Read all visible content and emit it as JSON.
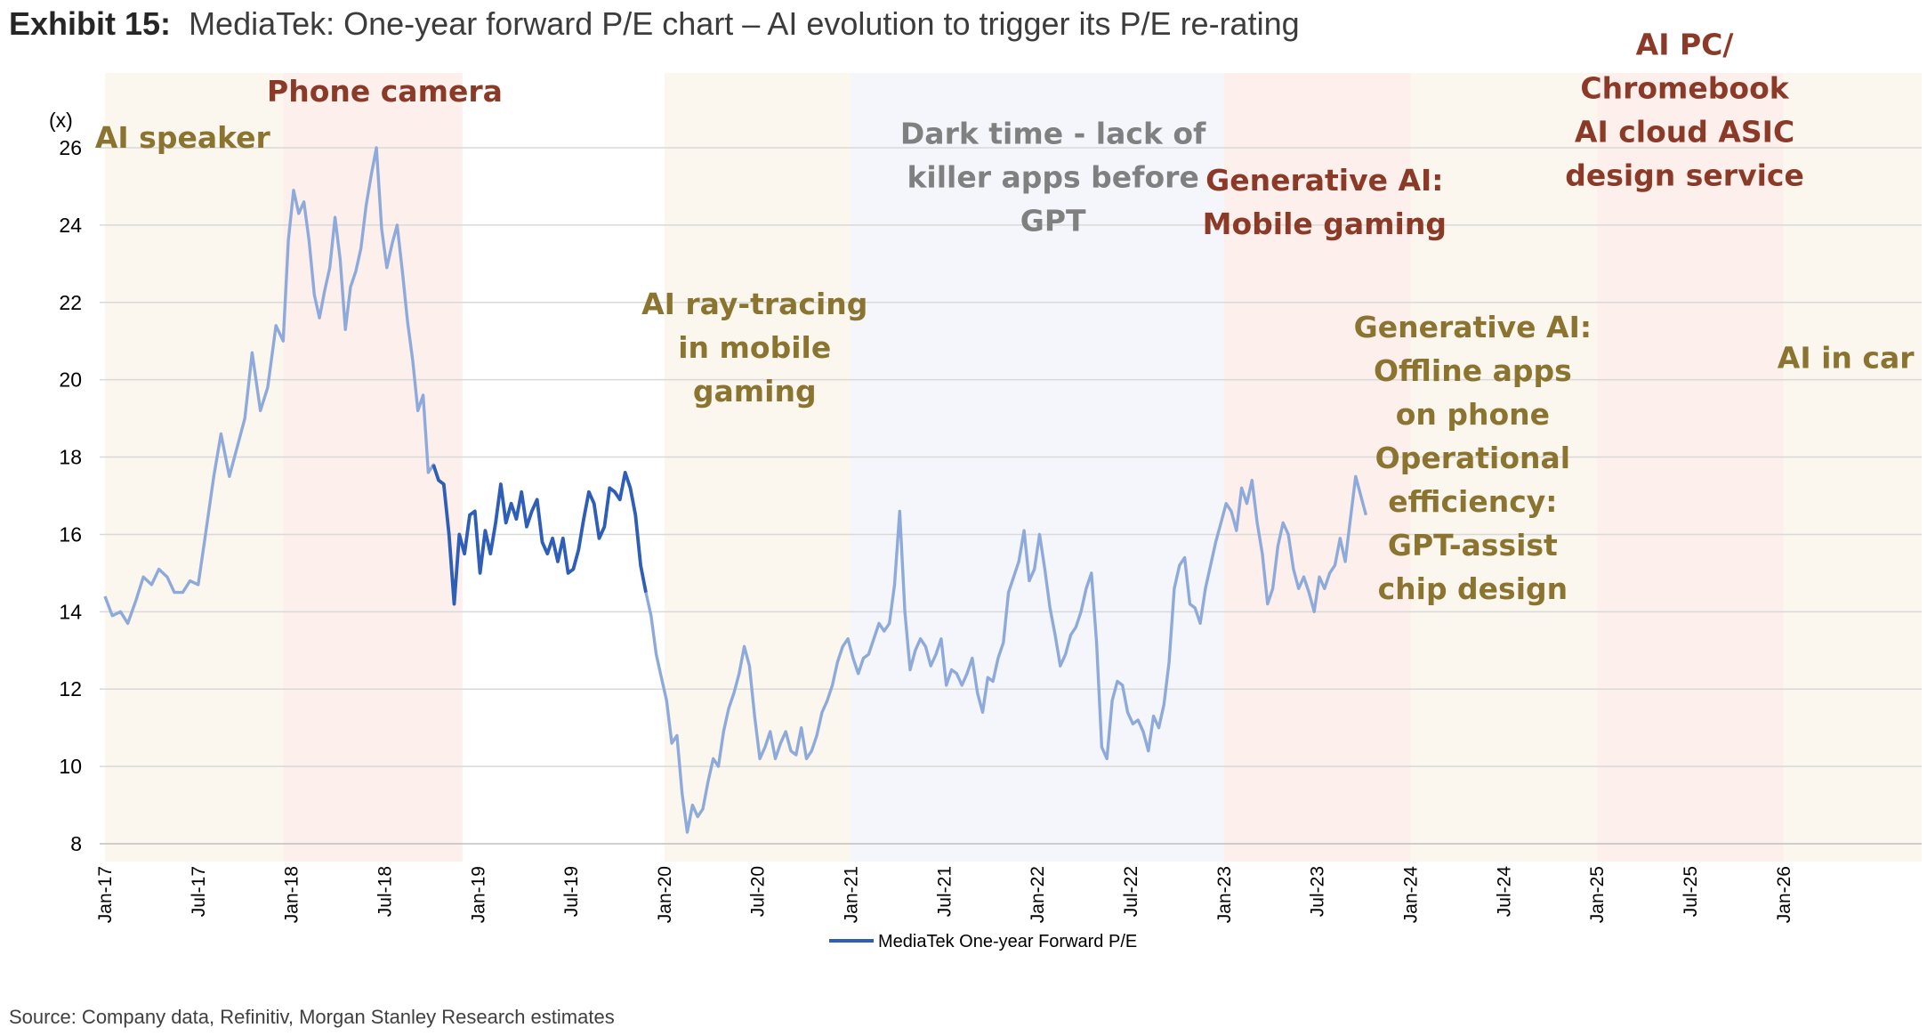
{
  "title": {
    "label": "Exhibit 15:",
    "text": "MediaTek: One-year forward P/E chart – AI evolution to trigger its P/E re-rating"
  },
  "source": "Source: Company data, Refinitiv, Morgan Stanley Research estimates",
  "chart_data": {
    "type": "line",
    "y_unit": "(x)",
    "ylim": [
      8,
      26
    ],
    "yticks": [
      "8",
      "10",
      "12",
      "14",
      "16",
      "18",
      "20",
      "22",
      "24",
      "26"
    ],
    "xlim": [
      "2017-01",
      "2026-10"
    ],
    "xticks": [
      "Jan-17",
      "Jul-17",
      "Jan-18",
      "Jul-18",
      "Jan-19",
      "Jul-19",
      "Jan-20",
      "Jul-20",
      "Jan-21",
      "Jul-21",
      "Jan-22",
      "Jul-22",
      "Jan-23",
      "Jul-23",
      "Jan-24",
      "Jul-24",
      "Jan-25",
      "Jul-25",
      "Jan-26"
    ],
    "grid": true,
    "legend": "bottom",
    "colors": {
      "line_light": "#8eaadb",
      "line_dark": "#2f5eb8",
      "olive": "#8a7430",
      "brown": "#8b3a28",
      "gray": "#808080",
      "band_beige": "#fbf6ee",
      "band_pink": "#fcefec",
      "band_blue": "#f4f6fb"
    },
    "series": [
      {
        "name": "MediaTek One-year Forward P/E",
        "highlight": [
          "2018-10",
          "2019-12"
        ],
        "points": [
          [
            "2017-01-01",
            14.4
          ],
          [
            "2017-01-15",
            13.9
          ],
          [
            "2017-02-01",
            14.0
          ],
          [
            "2017-02-15",
            13.7
          ],
          [
            "2017-03-01",
            14.3
          ],
          [
            "2017-03-15",
            14.9
          ],
          [
            "2017-04-01",
            14.7
          ],
          [
            "2017-04-15",
            15.1
          ],
          [
            "2017-05-01",
            14.9
          ],
          [
            "2017-05-15",
            14.5
          ],
          [
            "2017-06-01",
            14.5
          ],
          [
            "2017-06-15",
            14.8
          ],
          [
            "2017-07-01",
            14.7
          ],
          [
            "2017-07-15",
            16.0
          ],
          [
            "2017-08-01",
            17.5
          ],
          [
            "2017-08-15",
            18.6
          ],
          [
            "2017-09-01",
            17.5
          ],
          [
            "2017-09-15",
            18.2
          ],
          [
            "2017-10-01",
            19.0
          ],
          [
            "2017-10-15",
            20.7
          ],
          [
            "2017-11-01",
            19.2
          ],
          [
            "2017-11-15",
            19.8
          ],
          [
            "2017-12-01",
            21.4
          ],
          [
            "2017-12-15",
            21.0
          ],
          [
            "2017-12-25",
            23.6
          ],
          [
            "2018-01-05",
            24.9
          ],
          [
            "2018-01-15",
            24.3
          ],
          [
            "2018-01-25",
            24.6
          ],
          [
            "2018-02-05",
            23.6
          ],
          [
            "2018-02-15",
            22.2
          ],
          [
            "2018-02-25",
            21.6
          ],
          [
            "2018-03-05",
            22.3
          ],
          [
            "2018-03-15",
            22.9
          ],
          [
            "2018-03-25",
            24.2
          ],
          [
            "2018-04-05",
            23.1
          ],
          [
            "2018-04-15",
            21.3
          ],
          [
            "2018-04-25",
            22.4
          ],
          [
            "2018-05-05",
            22.8
          ],
          [
            "2018-05-15",
            23.4
          ],
          [
            "2018-05-25",
            24.5
          ],
          [
            "2018-06-05",
            25.3
          ],
          [
            "2018-06-15",
            26.0
          ],
          [
            "2018-06-25",
            23.9
          ],
          [
            "2018-07-05",
            22.9
          ],
          [
            "2018-07-15",
            23.5
          ],
          [
            "2018-07-25",
            24.0
          ],
          [
            "2018-08-05",
            22.8
          ],
          [
            "2018-08-15",
            21.5
          ],
          [
            "2018-08-25",
            20.5
          ],
          [
            "2018-09-05",
            19.2
          ],
          [
            "2018-09-15",
            19.6
          ],
          [
            "2018-09-25",
            17.6
          ],
          [
            "2018-10-05",
            17.8
          ],
          [
            "2018-10-15",
            17.4
          ],
          [
            "2018-10-25",
            17.3
          ],
          [
            "2018-11-05",
            16.0
          ],
          [
            "2018-11-15",
            14.2
          ],
          [
            "2018-11-25",
            16.0
          ],
          [
            "2018-12-05",
            15.5
          ],
          [
            "2018-12-15",
            16.5
          ],
          [
            "2018-12-25",
            16.6
          ],
          [
            "2019-01-05",
            15.0
          ],
          [
            "2019-01-15",
            16.1
          ],
          [
            "2019-01-25",
            15.5
          ],
          [
            "2019-02-05",
            16.3
          ],
          [
            "2019-02-15",
            17.3
          ],
          [
            "2019-02-25",
            16.3
          ],
          [
            "2019-03-05",
            16.8
          ],
          [
            "2019-03-15",
            16.4
          ],
          [
            "2019-03-25",
            17.1
          ],
          [
            "2019-04-05",
            16.2
          ],
          [
            "2019-04-15",
            16.6
          ],
          [
            "2019-04-25",
            16.9
          ],
          [
            "2019-05-05",
            15.8
          ],
          [
            "2019-05-15",
            15.5
          ],
          [
            "2019-05-25",
            15.9
          ],
          [
            "2019-06-05",
            15.3
          ],
          [
            "2019-06-15",
            15.9
          ],
          [
            "2019-06-25",
            15.0
          ],
          [
            "2019-07-05",
            15.1
          ],
          [
            "2019-07-15",
            15.6
          ],
          [
            "2019-07-25",
            16.4
          ],
          [
            "2019-08-05",
            17.1
          ],
          [
            "2019-08-15",
            16.8
          ],
          [
            "2019-08-25",
            15.9
          ],
          [
            "2019-09-05",
            16.2
          ],
          [
            "2019-09-15",
            17.2
          ],
          [
            "2019-09-25",
            17.1
          ],
          [
            "2019-10-05",
            16.9
          ],
          [
            "2019-10-15",
            17.6
          ],
          [
            "2019-10-25",
            17.2
          ],
          [
            "2019-11-05",
            16.5
          ],
          [
            "2019-11-15",
            15.2
          ],
          [
            "2019-11-25",
            14.5
          ],
          [
            "2019-12-05",
            13.9
          ],
          [
            "2019-12-15",
            12.9
          ],
          [
            "2019-12-25",
            12.3
          ],
          [
            "2020-01-05",
            11.7
          ],
          [
            "2020-01-15",
            10.6
          ],
          [
            "2020-01-25",
            10.8
          ],
          [
            "2020-02-05",
            9.3
          ],
          [
            "2020-02-15",
            8.3
          ],
          [
            "2020-02-25",
            9.0
          ],
          [
            "2020-03-05",
            8.7
          ],
          [
            "2020-03-15",
            8.9
          ],
          [
            "2020-03-25",
            9.6
          ],
          [
            "2020-04-05",
            10.2
          ],
          [
            "2020-04-15",
            10.0
          ],
          [
            "2020-04-25",
            10.9
          ],
          [
            "2020-05-05",
            11.5
          ],
          [
            "2020-05-15",
            11.9
          ],
          [
            "2020-05-25",
            12.4
          ],
          [
            "2020-06-05",
            13.1
          ],
          [
            "2020-06-15",
            12.6
          ],
          [
            "2020-06-25",
            11.3
          ],
          [
            "2020-07-05",
            10.2
          ],
          [
            "2020-07-15",
            10.5
          ],
          [
            "2020-07-25",
            10.9
          ],
          [
            "2020-08-05",
            10.2
          ],
          [
            "2020-08-15",
            10.6
          ],
          [
            "2020-08-25",
            10.9
          ],
          [
            "2020-09-05",
            10.4
          ],
          [
            "2020-09-15",
            10.3
          ],
          [
            "2020-09-25",
            11.0
          ],
          [
            "2020-10-05",
            10.2
          ],
          [
            "2020-10-15",
            10.4
          ],
          [
            "2020-10-25",
            10.8
          ],
          [
            "2020-11-05",
            11.4
          ],
          [
            "2020-11-15",
            11.7
          ],
          [
            "2020-11-25",
            12.1
          ],
          [
            "2020-12-05",
            12.7
          ],
          [
            "2020-12-15",
            13.1
          ],
          [
            "2020-12-25",
            13.3
          ],
          [
            "2021-01-05",
            12.8
          ],
          [
            "2021-01-15",
            12.4
          ],
          [
            "2021-01-25",
            12.8
          ],
          [
            "2021-02-05",
            12.9
          ],
          [
            "2021-02-15",
            13.3
          ],
          [
            "2021-02-25",
            13.7
          ],
          [
            "2021-03-05",
            13.5
          ],
          [
            "2021-03-15",
            13.7
          ],
          [
            "2021-03-25",
            14.7
          ],
          [
            "2021-04-05",
            16.6
          ],
          [
            "2021-04-15",
            14.0
          ],
          [
            "2021-04-25",
            12.5
          ],
          [
            "2021-05-05",
            13.0
          ],
          [
            "2021-05-15",
            13.3
          ],
          [
            "2021-05-25",
            13.1
          ],
          [
            "2021-06-05",
            12.6
          ],
          [
            "2021-06-15",
            12.9
          ],
          [
            "2021-06-25",
            13.3
          ],
          [
            "2021-07-05",
            12.1
          ],
          [
            "2021-07-15",
            12.5
          ],
          [
            "2021-07-25",
            12.4
          ],
          [
            "2021-08-05",
            12.1
          ],
          [
            "2021-08-15",
            12.4
          ],
          [
            "2021-08-25",
            12.8
          ],
          [
            "2021-09-05",
            11.9
          ],
          [
            "2021-09-15",
            11.4
          ],
          [
            "2021-09-25",
            12.3
          ],
          [
            "2021-10-05",
            12.2
          ],
          [
            "2021-10-15",
            12.8
          ],
          [
            "2021-10-25",
            13.2
          ],
          [
            "2021-11-05",
            14.5
          ],
          [
            "2021-11-15",
            14.9
          ],
          [
            "2021-11-25",
            15.3
          ],
          [
            "2021-12-05",
            16.1
          ],
          [
            "2021-12-15",
            14.8
          ],
          [
            "2021-12-25",
            15.1
          ],
          [
            "2022-01-05",
            16.0
          ],
          [
            "2022-01-15",
            15.1
          ],
          [
            "2022-01-25",
            14.1
          ],
          [
            "2022-02-05",
            13.4
          ],
          [
            "2022-02-15",
            12.6
          ],
          [
            "2022-02-25",
            12.9
          ],
          [
            "2022-03-05",
            13.4
          ],
          [
            "2022-03-15",
            13.6
          ],
          [
            "2022-03-25",
            14.0
          ],
          [
            "2022-04-05",
            14.6
          ],
          [
            "2022-04-15",
            15.0
          ],
          [
            "2022-04-25",
            13.2
          ],
          [
            "2022-05-05",
            10.5
          ],
          [
            "2022-05-15",
            10.2
          ],
          [
            "2022-05-25",
            11.7
          ],
          [
            "2022-06-05",
            12.2
          ],
          [
            "2022-06-15",
            12.1
          ],
          [
            "2022-06-25",
            11.4
          ],
          [
            "2022-07-05",
            11.1
          ],
          [
            "2022-07-15",
            11.2
          ],
          [
            "2022-07-25",
            10.9
          ],
          [
            "2022-08-05",
            10.4
          ],
          [
            "2022-08-15",
            11.3
          ],
          [
            "2022-08-25",
            11.0
          ],
          [
            "2022-09-05",
            11.6
          ],
          [
            "2022-09-15",
            12.7
          ],
          [
            "2022-09-25",
            14.6
          ],
          [
            "2022-10-05",
            15.2
          ],
          [
            "2022-10-15",
            15.4
          ],
          [
            "2022-10-25",
            14.2
          ],
          [
            "2022-11-05",
            14.1
          ],
          [
            "2022-11-15",
            13.7
          ],
          [
            "2022-11-25",
            14.6
          ],
          [
            "2022-12-05",
            15.2
          ],
          [
            "2022-12-15",
            15.8
          ],
          [
            "2022-12-25",
            16.3
          ],
          [
            "2023-01-05",
            16.8
          ],
          [
            "2023-01-15",
            16.6
          ],
          [
            "2023-01-25",
            16.1
          ],
          [
            "2023-02-05",
            17.2
          ],
          [
            "2023-02-15",
            16.8
          ],
          [
            "2023-02-25",
            17.4
          ],
          [
            "2023-03-05",
            16.3
          ],
          [
            "2023-03-15",
            15.5
          ],
          [
            "2023-03-25",
            14.2
          ],
          [
            "2023-04-05",
            14.6
          ],
          [
            "2023-04-15",
            15.7
          ],
          [
            "2023-04-25",
            16.3
          ],
          [
            "2023-05-05",
            16.0
          ],
          [
            "2023-05-15",
            15.1
          ],
          [
            "2023-05-25",
            14.6
          ],
          [
            "2023-06-05",
            14.9
          ],
          [
            "2023-06-15",
            14.5
          ],
          [
            "2023-06-25",
            14.0
          ],
          [
            "2023-07-05",
            14.9
          ],
          [
            "2023-07-15",
            14.6
          ],
          [
            "2023-07-25",
            15.0
          ],
          [
            "2023-08-05",
            15.2
          ],
          [
            "2023-08-15",
            15.9
          ],
          [
            "2023-08-25",
            15.3
          ],
          [
            "2023-09-05",
            16.4
          ],
          [
            "2023-09-15",
            17.5
          ],
          [
            "2023-09-25",
            17.0
          ],
          [
            "2023-10-05",
            16.5
          ]
        ]
      }
    ],
    "bands": [
      {
        "from": "2017-01",
        "to": "2017-12-15",
        "tone": "beige",
        "label": [
          "AI speaker"
        ],
        "label_color": "olive",
        "label_x": "2017-06",
        "label_y": 26.0
      },
      {
        "from": "2017-12-15",
        "to": "2018-12",
        "tone": "pink",
        "label": [
          "Phone camera"
        ],
        "label_color": "brown",
        "label_x": "2018-07",
        "label_y": 27.2
      },
      {
        "from": "2020-01",
        "to": "2021-01",
        "tone": "beige",
        "label": [
          "AI ray-tracing",
          "in mobile",
          "gaming"
        ],
        "label_color": "olive",
        "label_x": "2020-06-25",
        "label_y": 21.7
      },
      {
        "from": "2021-01",
        "to": "2023-01",
        "tone": "blue",
        "label": [
          "Dark time - lack of",
          "killer apps before",
          "GPT"
        ],
        "label_color": "gray",
        "label_x": "2022-02",
        "label_y": 26.1
      },
      {
        "from": "2023-01",
        "to": "2024-01",
        "tone": "pink",
        "label": [
          "Generative AI:",
          "Mobile gaming"
        ],
        "label_color": "brown",
        "label_x": "2023-07-15",
        "label_y": 24.9
      },
      {
        "from": "2024-01",
        "to": "2025-01",
        "tone": "beige",
        "label": [
          "Generative AI:",
          "Offline apps",
          "on phone",
          "",
          "Operational",
          "efficiency:",
          "GPT-assist",
          "chip design"
        ],
        "label_color": "olive",
        "label_x": "2024-05",
        "label_y": 21.1
      },
      {
        "from": "2025-01",
        "to": "2026-01",
        "tone": "pink",
        "label": [
          "AI PC/",
          "Chromebook",
          "",
          "AI cloud ASIC",
          "design service"
        ],
        "label_color": "brown",
        "label_x": "2025-06-20",
        "label_y": 28.4
      },
      {
        "from": "2026-01",
        "to": "2026-10",
        "tone": "beige",
        "label": [
          "AI in car"
        ],
        "label_color": "olive",
        "label_x": "2026-05",
        "label_y": 20.3
      }
    ]
  }
}
